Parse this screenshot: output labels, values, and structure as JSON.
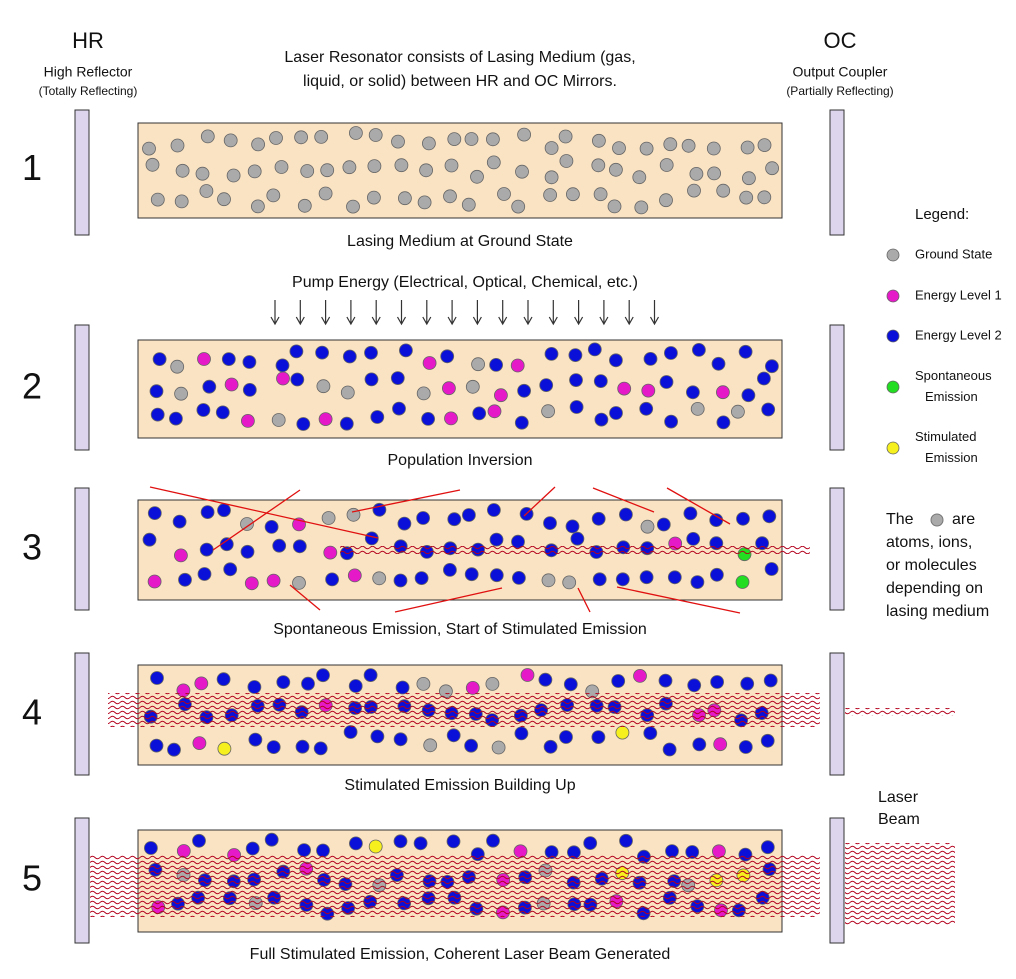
{
  "header": {
    "hr": {
      "title": "HR",
      "subtitle": "High Reflector",
      "note": "(Totally Reflecting)"
    },
    "oc": {
      "title": "OC",
      "subtitle": "Output Coupler",
      "note": "(Partially Reflecting)"
    },
    "description": [
      "Laser Resonator consists of Lasing Medium (gas,",
      "liquid, or solid) between HR and OC Mirrors."
    ]
  },
  "pump_label": "Pump Energy (Electrical, Optical, Chemical, etc.)",
  "stages": [
    {
      "number": "1",
      "caption": "Lasing Medium at Ground State"
    },
    {
      "number": "2",
      "caption": "Population Inversion"
    },
    {
      "number": "3",
      "caption": "Spontaneous Emission, Start of Stimulated Emission"
    },
    {
      "number": "4",
      "caption": "Stimulated Emission Building Up"
    },
    {
      "number": "5",
      "caption": "Full Stimulated Emission, Coherent Laser Beam Generated"
    }
  ],
  "legend": {
    "title": "Legend:",
    "items": [
      {
        "label": [
          "Ground State"
        ]
      },
      {
        "label": [
          "Energy Level 1"
        ]
      },
      {
        "label": [
          "Energy Level 2"
        ]
      },
      {
        "label": [
          "Spontaneous",
          "Emission"
        ]
      },
      {
        "label": [
          "Stimulated",
          "Emission"
        ]
      }
    ],
    "note_start": "The",
    "note_are": "are",
    "note_lines": [
      "atoms, ions,",
      "or molecules",
      "depending on",
      "lasing medium"
    ]
  },
  "laser_beam_label": [
    "Laser",
    "Beam"
  ]
}
